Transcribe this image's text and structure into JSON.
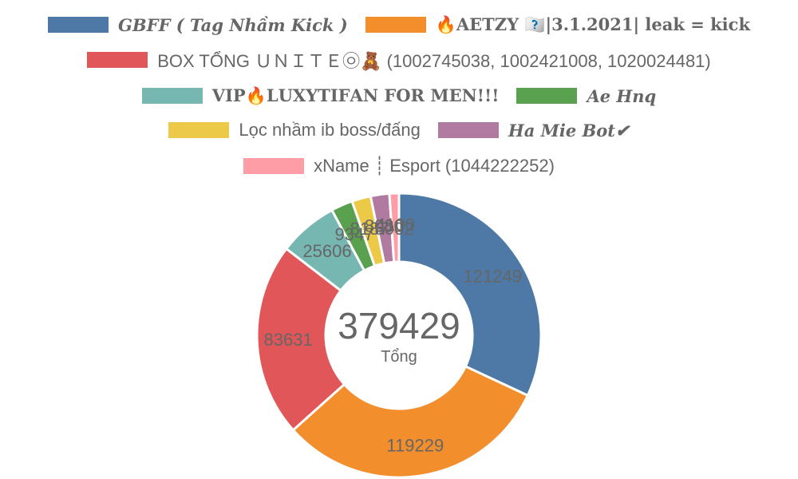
{
  "chart_data": {
    "type": "pie",
    "donut": true,
    "legend_position": "top",
    "center_value": "379429",
    "center_label": "Tổng",
    "slices": [
      {
        "name": "𝑮𝑩𝑭𝑭 ( Tag Nhầm Kick )",
        "value": 121249,
        "label": "121249",
        "color": "#4e79a7",
        "style": "styled"
      },
      {
        "name": "🔥𝐀𝐄𝐓𝐙𝐘 🇫🇳|3.1.2021| leak = kick",
        "value": 119229,
        "label": "119229",
        "color": "#f28e2b",
        "style": "serif-bold"
      },
      {
        "name": "BOX TỔNG ＵＮＩＴＥ㉧🧸 (1002745038, 1002421008, 1020024481)",
        "value": 83631,
        "label": "83631",
        "color": "#e15759",
        "style": "plain"
      },
      {
        "name": "𝐕𝐈𝐏🔥𝐋𝐔𝐗𝐘𝐓𝐈𝐅𝐀𝐍 𝐅𝐎𝐑 𝐌𝐄𝐍!!!",
        "value": 25606,
        "label": "25606",
        "color": "#76b7b2",
        "style": "serif-bold"
      },
      {
        "name": "𝑨𝒆 𝑯𝒏𝒒",
        "value": 9347,
        "label": "9347",
        "color": "#59a14f",
        "style": "styled"
      },
      {
        "name": "Lọc nhầm ib boss/đấng",
        "value": 8187,
        "label": "8187",
        "color": "#edc948",
        "style": "plain"
      },
      {
        "name": "𝑯𝒂 𝑴𝒊𝒆 𝑩𝒐𝒕✔",
        "value": 8080,
        "label": "8080",
        "color": "#b07aa1",
        "style": "styled"
      },
      {
        "name": "xName ┊ Esport (1044222252)",
        "value": 4100,
        "label": "4100",
        "color": "#ff9da7",
        "style": "plain"
      }
    ],
    "extra_labels": [
      "8002"
    ]
  }
}
